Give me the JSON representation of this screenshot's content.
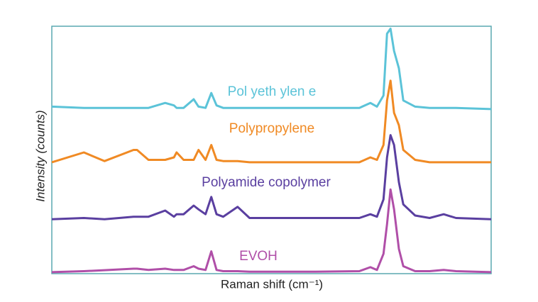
{
  "chart_data": {
    "type": "line",
    "x_label": "Raman shift (cm⁻¹)",
    "y_label": "Intensity (counts)",
    "x": [
      0,
      7.3,
      12,
      18.6,
      19.4,
      22,
      25.8,
      27.8,
      28.4,
      30,
      32.3,
      33.4,
      35,
      36.3,
      37.5,
      39,
      42.3,
      45,
      60,
      70,
      72.5,
      74,
      75.5,
      76.3,
      77.1,
      77.9,
      79.0,
      80,
      82.7,
      86,
      89.2,
      92,
      100
    ],
    "xlim": [
      0,
      100
    ],
    "ylim": [
      0,
      100
    ],
    "series": [
      {
        "name": "Pol yeth ylen e",
        "color": "#5bc3d8",
        "values": [
          67.5,
          67,
          67,
          67,
          67,
          67,
          69,
          68,
          67,
          67,
          70.5,
          67.5,
          67,
          73,
          68,
          67,
          67,
          67,
          67,
          67,
          69,
          67.5,
          72,
          97,
          99,
          90,
          83,
          70,
          67.5,
          67,
          67,
          67,
          66.5
        ]
      },
      {
        "name": "Polypropylene",
        "color": "#f08a24",
        "values": [
          45,
          49,
          45.5,
          50,
          50,
          46,
          46,
          47,
          49,
          46,
          46,
          50,
          46,
          52,
          46,
          45.5,
          45.5,
          45,
          45,
          45,
          47,
          46,
          52,
          70,
          78,
          65,
          60,
          50,
          46,
          45,
          45,
          45,
          45
        ]
      },
      {
        "name": "Polyamide copolymer",
        "color": "#5a3fa0",
        "values": [
          22,
          22.5,
          22,
          23,
          23,
          23,
          25.5,
          23,
          24,
          24,
          27.5,
          26,
          24,
          31,
          24,
          23,
          27,
          22.5,
          22.5,
          22.5,
          24,
          23,
          30,
          47,
          56,
          52,
          37,
          28,
          23.5,
          22.5,
          24,
          22.5,
          22
        ]
      },
      {
        "name": "EVOH",
        "color": "#b04fa8",
        "values": [
          0.6,
          1,
          1.4,
          2,
          2,
          1.5,
          2,
          1.5,
          1.5,
          1.5,
          3,
          2,
          1.5,
          9,
          1.5,
          1,
          1,
          0.8,
          0.8,
          1,
          2.6,
          1.5,
          8,
          20,
          34,
          26,
          10,
          3,
          1,
          1,
          1.5,
          1,
          0.6
        ]
      }
    ]
  }
}
